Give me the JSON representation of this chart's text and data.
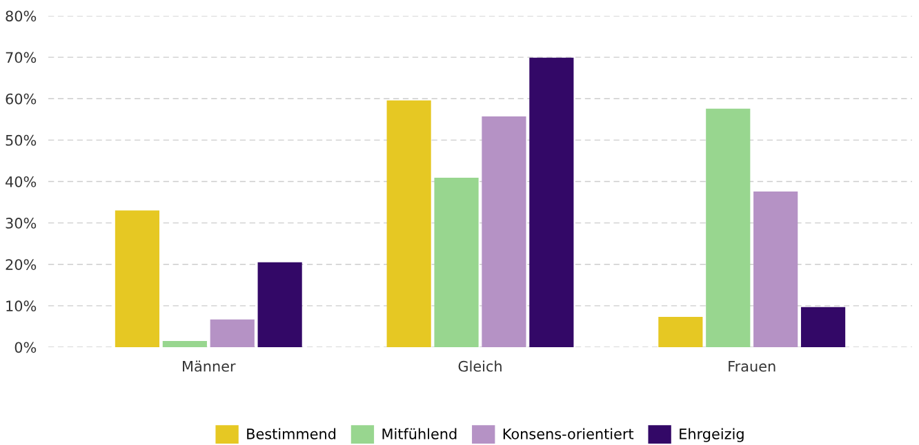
{
  "chart_data": {
    "type": "bar",
    "categories": [
      "Männer",
      "Gleich",
      "Frauen"
    ],
    "series": [
      {
        "name": "Bestimmend",
        "color": "#e6c823",
        "values": [
          33,
          59.6,
          7.3
        ]
      },
      {
        "name": "Mitfühlend",
        "color": "#98d68f",
        "values": [
          1.5,
          40.9,
          57.6
        ]
      },
      {
        "name": "Konsens-orientiert",
        "color": "#b592c5",
        "values": [
          6.7,
          55.7,
          37.6
        ]
      },
      {
        "name": "Ehrgeizig",
        "color": "#330867",
        "values": [
          20.5,
          69.9,
          9.7
        ]
      }
    ],
    "ylim": [
      0,
      80
    ],
    "yticks": [
      {
        "value": 0,
        "label": "0%"
      },
      {
        "value": 10,
        "label": "10%"
      },
      {
        "value": 20,
        "label": "20%"
      },
      {
        "value": 30,
        "label": "30%"
      },
      {
        "value": 40,
        "label": "40%"
      },
      {
        "value": 50,
        "label": "50%"
      },
      {
        "value": 60,
        "label": "60%"
      },
      {
        "value": 70,
        "label": "70%"
      },
      {
        "value": 80,
        "label": "80%"
      }
    ],
    "grid": "y",
    "legend": "bottom"
  }
}
